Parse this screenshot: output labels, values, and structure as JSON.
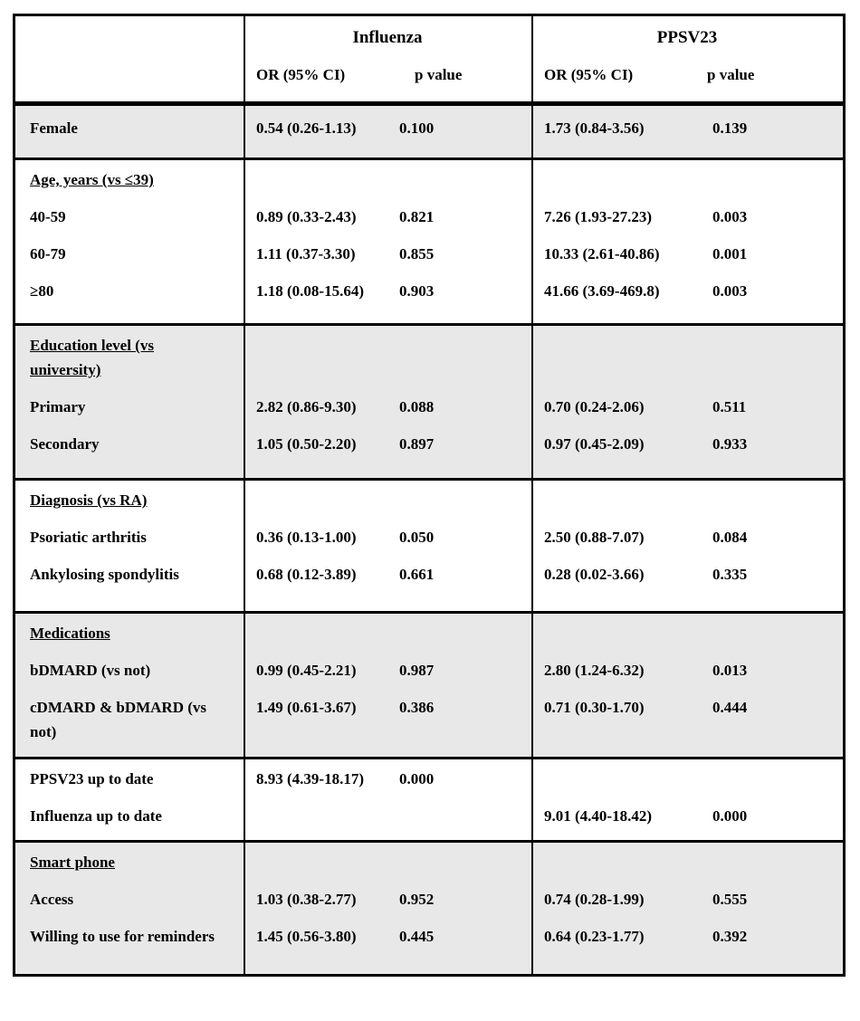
{
  "table": {
    "colors": {
      "shaded_bg": "#e8e8e8",
      "border": "#000000",
      "text": "#000000"
    },
    "col_groups": [
      {
        "title": "Influenza",
        "or_header": "OR (95% CI)",
        "p_header": "p value"
      },
      {
        "title": "PPSV23",
        "or_header": "OR (95% CI)",
        "p_header": "p value"
      }
    ],
    "sections": [
      {
        "shaded": true,
        "rows": [
          {
            "label": "Female",
            "flu_or": "0.54 (0.26-1.13)",
            "flu_p": "0.100",
            "ppsv_or": "1.73 (0.84-3.56)",
            "ppsv_p": "0.139"
          }
        ]
      },
      {
        "shaded": false,
        "header": "Age, years (vs ≤39)",
        "rows": [
          {
            "label": "40-59",
            "flu_or": "0.89 (0.33-2.43)",
            "flu_p": "0.821",
            "ppsv_or": "7.26 (1.93-27.23)",
            "ppsv_p": "0.003"
          },
          {
            "label": "60-79",
            "flu_or": "1.11 (0.37-3.30)",
            "flu_p": "0.855",
            "ppsv_or": "10.33 (2.61-40.86)",
            "ppsv_p": "0.001"
          },
          {
            "label": "≥80",
            "flu_or": "1.18 (0.08-15.64)",
            "flu_p": "0.903",
            "ppsv_or": "41.66 (3.69-469.8)",
            "ppsv_p": "0.003"
          }
        ]
      },
      {
        "shaded": true,
        "header": "Education level (vs university)",
        "rows": [
          {
            "label": "Primary",
            "flu_or": "2.82 (0.86-9.30)",
            "flu_p": "0.088",
            "ppsv_or": "0.70 (0.24-2.06)",
            "ppsv_p": "0.511"
          },
          {
            "label": "Secondary",
            "flu_or": "1.05 (0.50-2.20)",
            "flu_p": "0.897",
            "ppsv_or": "0.97 (0.45-2.09)",
            "ppsv_p": "0.933"
          }
        ]
      },
      {
        "shaded": false,
        "header": "Diagnosis (vs RA)",
        "rows": [
          {
            "label": "Psoriatic arthritis",
            "flu_or": "0.36 (0.13-1.00)",
            "flu_p": "0.050",
            "ppsv_or": "2.50 (0.88-7.07)",
            "ppsv_p": "0.084"
          },
          {
            "label": "Ankylosing spondylitis",
            "flu_or": "0.68 (0.12-3.89)",
            "flu_p": "0.661",
            "ppsv_or": "0.28 (0.02-3.66)",
            "ppsv_p": "0.335"
          }
        ]
      },
      {
        "shaded": true,
        "header": "Medications",
        "rows": [
          {
            "label": "bDMARD (vs not)",
            "flu_or": "0.99 (0.45-2.21)",
            "flu_p": "0.987",
            "ppsv_or": "2.80 (1.24-6.32)",
            "ppsv_p": "0.013"
          },
          {
            "label": "cDMARD & bDMARD (vs not)",
            "flu_or": "1.49 (0.61-3.67)",
            "flu_p": "0.386",
            "ppsv_or": "0.71 (0.30-1.70)",
            "ppsv_p": "0.444"
          }
        ]
      },
      {
        "shaded": false,
        "rows": [
          {
            "label": "PPSV23 up to date",
            "flu_or": "8.93 (4.39-18.17)",
            "flu_p": "0.000",
            "ppsv_or": "",
            "ppsv_p": ""
          },
          {
            "label": "Influenza up to date",
            "flu_or": "",
            "flu_p": "",
            "ppsv_or": "9.01 (4.40-18.42)",
            "ppsv_p": "0.000"
          }
        ]
      },
      {
        "shaded": true,
        "header": "Smart phone",
        "rows": [
          {
            "label": "Access",
            "flu_or": "1.03 (0.38-2.77)",
            "flu_p": "0.952",
            "ppsv_or": "0.74 (0.28-1.99)",
            "ppsv_p": "0.555"
          },
          {
            "label": "Willing to use for reminders",
            "flu_or": "1.45 (0.56-3.80)",
            "flu_p": "0.445",
            "ppsv_or": "0.64 (0.23-1.77)",
            "ppsv_p": "0.392"
          }
        ]
      }
    ]
  }
}
